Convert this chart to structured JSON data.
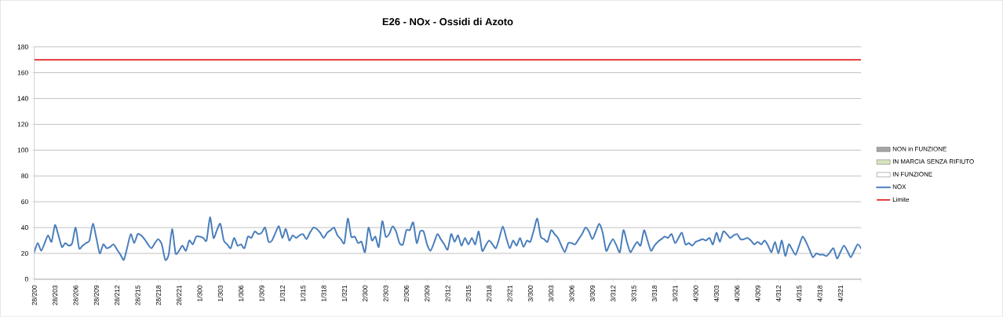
{
  "chart_data": {
    "type": "line",
    "title": "E26 - NOx - Ossidi di Azoto",
    "categories": [
      "28/200",
      null,
      null,
      null,
      null,
      null,
      "28/203",
      null,
      null,
      null,
      null,
      null,
      "28/206",
      null,
      null,
      null,
      null,
      null,
      "28/209",
      null,
      null,
      null,
      null,
      null,
      "28/212",
      null,
      null,
      null,
      null,
      null,
      "28/215",
      null,
      null,
      null,
      null,
      null,
      "28/218",
      null,
      null,
      null,
      null,
      null,
      "28/221",
      null,
      null,
      null,
      null,
      null,
      "1/300",
      null,
      null,
      null,
      null,
      null,
      "1/303",
      null,
      null,
      null,
      null,
      null,
      "1/306",
      null,
      null,
      null,
      null,
      null,
      "1/309",
      null,
      null,
      null,
      null,
      null,
      "1/312",
      null,
      null,
      null,
      null,
      null,
      "1/315",
      null,
      null,
      null,
      null,
      null,
      "1/318",
      null,
      null,
      null,
      null,
      null,
      "1/321",
      null,
      null,
      null,
      null,
      null,
      "2/300",
      null,
      null,
      null,
      null,
      null,
      "2/303",
      null,
      null,
      null,
      null,
      null,
      "2/306",
      null,
      null,
      null,
      null,
      null,
      "2/309",
      null,
      null,
      null,
      null,
      null,
      "2/312",
      null,
      null,
      null,
      null,
      null,
      "2/315",
      null,
      null,
      null,
      null,
      null,
      "2/318",
      null,
      null,
      null,
      null,
      null,
      "2/321",
      null,
      null,
      null,
      null,
      null,
      "3/300",
      null,
      null,
      null,
      null,
      null,
      "3/303",
      null,
      null,
      null,
      null,
      null,
      "3/306",
      null,
      null,
      null,
      null,
      null,
      "3/309",
      null,
      null,
      null,
      null,
      null,
      "3/312",
      null,
      null,
      null,
      null,
      null,
      "3/315",
      null,
      null,
      null,
      null,
      null,
      "3/318",
      null,
      null,
      null,
      null,
      null,
      "3/321",
      null,
      null,
      null,
      null,
      null,
      "4/300",
      null,
      null,
      null,
      null,
      null,
      "4/303",
      null,
      null,
      null,
      null,
      null,
      "4/306",
      null,
      null,
      null,
      null,
      null,
      "4/309",
      null,
      null,
      null,
      null,
      null,
      "4/312",
      null,
      null,
      null,
      null,
      null,
      "4/315",
      null,
      null,
      null,
      null,
      null,
      "4/318",
      null,
      null,
      null,
      null,
      null,
      "4/321",
      null,
      null,
      null,
      null,
      null,
      null
    ],
    "ylim": [
      0,
      180
    ],
    "yticks": [
      0,
      20,
      40,
      60,
      80,
      100,
      120,
      140,
      160,
      180
    ],
    "grid": "y",
    "legend": "right",
    "series": [
      {
        "name": "NON in FUNZIONE",
        "type": "area",
        "color": "#a6a6a6",
        "values": [
          null,
          null,
          null,
          null,
          null,
          null,
          null,
          null,
          null,
          null,
          null,
          null,
          null,
          null,
          null,
          null,
          null,
          null,
          null,
          null,
          null,
          null,
          null,
          null,
          null,
          null,
          null,
          null,
          null,
          null,
          null,
          null,
          null,
          null,
          null,
          null,
          null,
          null,
          null,
          null,
          null,
          null,
          null,
          null,
          null,
          null,
          null,
          null,
          null,
          null,
          null,
          null,
          null,
          null,
          null,
          null,
          null,
          null,
          null,
          null,
          null,
          null,
          null,
          null,
          null,
          null,
          null,
          null,
          null,
          null,
          null,
          null,
          null,
          null,
          null,
          null,
          null,
          null,
          null,
          null,
          null,
          null,
          null,
          null,
          null,
          null,
          null,
          null,
          null,
          null,
          null,
          null,
          null,
          null,
          null,
          null,
          null,
          null,
          null,
          null,
          null,
          null,
          null,
          null,
          null,
          null,
          null,
          null,
          null,
          null,
          null,
          null,
          null,
          null,
          null,
          null,
          null,
          null,
          null,
          null,
          null,
          null,
          null,
          null,
          null,
          null,
          null,
          null,
          null,
          null,
          null,
          null,
          null,
          null,
          null,
          null,
          null,
          null,
          null,
          null,
          null,
          null,
          null,
          null,
          null,
          null,
          null,
          null,
          null,
          null,
          null,
          null,
          null,
          null,
          null,
          null,
          null,
          null,
          null,
          null,
          null,
          null,
          null,
          null,
          null,
          null,
          null,
          null,
          null,
          null,
          null,
          null,
          null,
          null,
          null,
          null,
          null,
          null,
          null,
          null,
          null,
          null,
          null,
          null,
          null,
          null,
          null,
          null,
          null,
          null,
          null,
          null,
          null,
          null,
          null,
          null,
          null,
          null,
          null,
          null,
          null,
          null,
          null,
          null,
          null,
          null,
          null,
          null,
          null,
          null,
          null,
          null,
          null,
          null,
          null,
          null,
          null,
          null,
          null,
          null,
          null,
          null,
          null,
          null,
          null,
          null,
          null,
          null,
          null,
          null,
          null,
          null,
          null,
          null,
          null,
          null,
          null,
          null,
          null,
          null,
          null
        ]
      },
      {
        "name": "IN MARCIA SENZA RIFIUTO",
        "type": "area",
        "color": "#d7e4bd",
        "values": [
          null,
          null,
          null,
          null,
          null,
          null,
          null,
          null,
          null,
          null,
          null,
          null,
          null,
          null,
          null,
          null,
          null,
          null,
          null,
          null,
          null,
          null,
          null,
          null,
          null,
          null,
          null,
          null,
          null,
          null,
          null,
          null,
          null,
          null,
          null,
          null,
          null,
          null,
          null,
          null,
          null,
          null,
          null,
          null,
          null,
          null,
          null,
          null,
          null,
          null,
          null,
          null,
          null,
          null,
          null,
          null,
          null,
          null,
          null,
          null,
          null,
          null,
          null,
          null,
          null,
          null,
          null,
          null,
          null,
          null,
          null,
          null,
          null,
          null,
          null,
          null,
          null,
          null,
          null,
          null,
          null,
          null,
          null,
          null,
          null,
          null,
          null,
          null,
          null,
          null,
          null,
          null,
          null,
          null,
          null,
          null,
          null,
          null,
          null,
          null,
          null,
          null,
          null,
          null,
          null,
          null,
          null,
          null,
          null,
          null,
          null,
          null,
          null,
          null,
          null,
          null,
          null,
          null,
          null,
          null,
          null,
          null,
          null,
          null,
          null,
          null,
          null,
          null,
          null,
          null,
          null,
          null,
          null,
          null,
          null,
          null,
          null,
          null,
          null,
          null,
          null,
          null,
          null,
          null,
          null,
          null,
          null,
          null,
          null,
          null,
          null,
          null,
          null,
          null,
          null,
          null,
          null,
          null,
          null,
          null,
          null,
          null,
          null,
          null,
          null,
          null,
          null,
          null,
          null,
          null,
          null,
          null,
          null,
          null,
          null,
          null,
          null,
          null,
          null,
          null,
          null,
          null,
          null,
          null,
          null,
          null,
          null,
          null,
          null,
          null,
          null,
          null,
          null,
          null,
          null,
          null,
          null,
          null,
          null,
          null,
          null,
          null,
          null,
          null,
          null,
          null,
          null,
          null,
          null,
          null,
          null,
          null,
          null,
          null,
          null,
          null,
          null,
          null,
          null,
          null,
          null,
          null,
          null,
          null,
          null,
          null,
          null,
          null,
          null,
          null,
          null,
          null,
          null,
          null,
          null,
          null,
          null,
          null,
          null,
          null,
          null
        ]
      },
      {
        "name": "IN FUNZIONE",
        "type": "area",
        "color": "#ffffff",
        "values": [
          null,
          null,
          null,
          null,
          null,
          null,
          null,
          null,
          null,
          null,
          null,
          null,
          null,
          null,
          null,
          null,
          null,
          null,
          null,
          null,
          null,
          null,
          null,
          null,
          null,
          null,
          null,
          null,
          null,
          null,
          null,
          null,
          null,
          null,
          null,
          null,
          null,
          null,
          null,
          null,
          null,
          null,
          null,
          null,
          null,
          null,
          null,
          null,
          null,
          null,
          null,
          null,
          null,
          null,
          null,
          null,
          null,
          null,
          null,
          null,
          null,
          null,
          null,
          null,
          null,
          null,
          null,
          null,
          null,
          null,
          null,
          null,
          null,
          null,
          null,
          null,
          null,
          null,
          null,
          null,
          null,
          null,
          null,
          null,
          null,
          null,
          null,
          null,
          null,
          null,
          null,
          null,
          null,
          null,
          null,
          null,
          null,
          null,
          null,
          null,
          null,
          null,
          null,
          null,
          null,
          null,
          null,
          null,
          null,
          null,
          null,
          null,
          null,
          null,
          null,
          null,
          null,
          null,
          null,
          null,
          null,
          null,
          null,
          null,
          null,
          null,
          null,
          null,
          null,
          null,
          null,
          null,
          null,
          null,
          null,
          null,
          null,
          null,
          null,
          null,
          null,
          null,
          null,
          null,
          null,
          null,
          null,
          null,
          null,
          null,
          null,
          null,
          null,
          null,
          null,
          null,
          null,
          null,
          null,
          null,
          null,
          null,
          null,
          null,
          null,
          null,
          null,
          null,
          null,
          null,
          null,
          null,
          null,
          null,
          null,
          null,
          null,
          null,
          null,
          null,
          null,
          null,
          null,
          null,
          null,
          null,
          null,
          null,
          null,
          null,
          null,
          null,
          null,
          null,
          null,
          null,
          null,
          null,
          null,
          null,
          null,
          null,
          null,
          null,
          null,
          null,
          null,
          null,
          null,
          null,
          null,
          null,
          null,
          null,
          null,
          null,
          null,
          null,
          null,
          null,
          null,
          null,
          null,
          null,
          null,
          null,
          null,
          null,
          null,
          null,
          null,
          null,
          null,
          null,
          null,
          null,
          null,
          null,
          null,
          null,
          null
        ]
      },
      {
        "name": "NOX",
        "color": "#4a7ebb",
        "values": [
          21,
          28,
          22,
          28,
          34,
          29,
          42,
          34,
          25,
          28,
          26,
          28,
          40,
          24,
          26,
          28,
          30,
          43,
          32,
          20,
          27,
          24,
          25,
          27,
          23,
          19,
          15,
          25,
          35,
          28,
          35,
          34,
          31,
          27,
          24,
          28,
          31,
          27,
          15,
          19,
          39,
          20,
          22,
          26,
          22,
          30,
          27,
          33,
          33,
          32,
          30,
          48,
          32,
          38,
          43,
          30,
          27,
          24,
          32,
          26,
          27,
          24,
          33,
          32,
          37,
          35,
          36,
          40,
          29,
          30,
          36,
          41,
          32,
          39,
          30,
          34,
          32,
          34,
          35,
          31,
          36,
          40,
          39,
          36,
          32,
          36,
          38,
          40,
          34,
          31,
          28,
          47,
          33,
          33,
          28,
          29,
          21,
          40,
          30,
          33,
          25,
          45,
          33,
          35,
          41,
          37,
          28,
          27,
          38,
          38,
          44,
          28,
          37,
          37,
          27,
          22,
          28,
          35,
          31,
          27,
          23,
          35,
          29,
          34,
          26,
          32,
          27,
          32,
          27,
          37,
          22,
          26,
          30,
          27,
          24,
          32,
          41,
          32,
          24,
          30,
          26,
          32,
          25,
          30,
          29,
          38,
          47,
          33,
          31,
          29,
          38,
          35,
          32,
          26,
          21,
          28,
          28,
          27,
          31,
          35,
          40,
          37,
          31,
          37,
          43,
          36,
          22,
          27,
          31,
          26,
          21,
          38,
          29,
          21,
          25,
          29,
          26,
          38,
          30,
          22,
          26,
          29,
          31,
          33,
          32,
          35,
          28,
          32,
          36,
          27,
          28,
          26,
          29,
          30,
          31,
          30,
          32,
          27,
          36,
          29,
          37,
          35,
          32,
          34,
          35,
          31,
          31,
          32,
          30,
          27,
          29,
          27,
          30,
          26,
          21,
          29,
          20,
          30,
          18,
          27,
          23,
          19,
          26,
          33,
          29,
          23,
          17,
          20,
          19,
          19,
          18,
          21,
          24,
          16,
          21,
          26,
          22,
          17,
          22,
          27,
          24
        ]
      }
    ],
    "ref_lines": [
      {
        "axis": "y",
        "value": 170,
        "label": "Limite",
        "color": "#e00000"
      }
    ]
  }
}
